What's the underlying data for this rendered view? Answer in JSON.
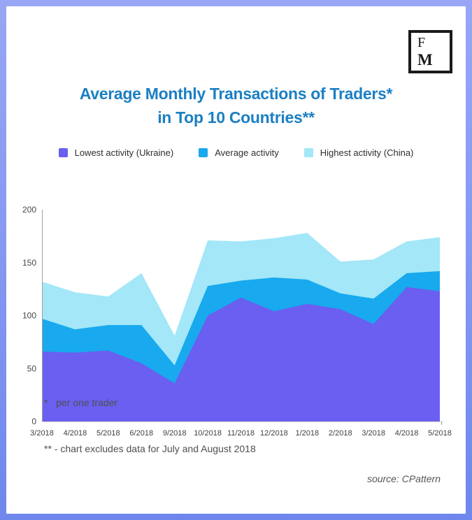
{
  "frame": {
    "border_color_top": "#98a6f5",
    "border_color_bottom": "#6f87ec"
  },
  "logo": {
    "letter_top": "F",
    "letter_bottom": "M"
  },
  "title": {
    "line1": "Average Monthly Transactions of Traders*",
    "line2": "in Top 10 Countries**",
    "color": "#1b7fc3"
  },
  "legend": [
    {
      "label": "Lowest activity (Ukraine)",
      "color": "#6a5ff0"
    },
    {
      "label": "Average activity",
      "color": "#18a9ee"
    },
    {
      "label": "Highest activity (China)",
      "color": "#a3e7f8"
    }
  ],
  "chart_data": {
    "type": "area",
    "overlapping": true,
    "title": "Average Monthly Transactions of Traders in Top 10 Countries",
    "x": [
      "3/2018",
      "4/2018",
      "5/2018",
      "6/2018",
      "9/2018",
      "10/2018",
      "11/2018",
      "12/2018",
      "1/2018",
      "2/2018",
      "3/2018",
      "4/2018",
      "5/2018"
    ],
    "series": [
      {
        "name": "Highest activity (China)",
        "color": "#a3e7f8",
        "values": [
          132,
          122,
          118,
          140,
          81,
          171,
          170,
          173,
          178,
          151,
          153,
          170,
          174
        ]
      },
      {
        "name": "Average activity",
        "color": "#18a9ee",
        "values": [
          97,
          87,
          91,
          91,
          53,
          128,
          133,
          136,
          134,
          121,
          116,
          140,
          142
        ]
      },
      {
        "name": "Lowest activity (Ukraine)",
        "color": "#6a5ff0",
        "values": [
          66,
          65,
          67,
          55,
          36,
          100,
          117,
          104,
          111,
          106,
          92,
          127,
          123
        ]
      }
    ],
    "ylim": [
      0,
      200
    ],
    "yticks": [
      0,
      50,
      100,
      150,
      200
    ],
    "grid": false,
    "legend_position": "top",
    "axis_color": "#a0a0a0",
    "baseline_color": "#d2d2d2",
    "tick_label_color": "#3f3f3f"
  },
  "footnotes": {
    "line1": "*   per one trader",
    "line2": "** - chart excludes data for July and August 2018"
  },
  "source": "source: CPattern"
}
